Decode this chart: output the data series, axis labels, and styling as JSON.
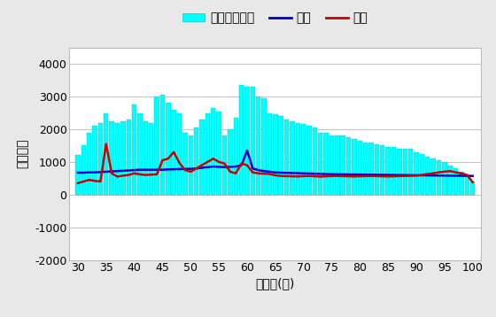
{
  "ages": [
    30,
    31,
    32,
    33,
    34,
    35,
    36,
    37,
    38,
    39,
    40,
    41,
    42,
    43,
    44,
    45,
    46,
    47,
    48,
    49,
    50,
    51,
    52,
    53,
    54,
    55,
    56,
    57,
    58,
    59,
    60,
    61,
    62,
    63,
    64,
    65,
    66,
    67,
    68,
    69,
    70,
    71,
    72,
    73,
    74,
    75,
    76,
    77,
    78,
    79,
    80,
    81,
    82,
    83,
    84,
    85,
    86,
    87,
    88,
    89,
    90,
    91,
    92,
    93,
    94,
    95,
    96,
    97,
    98,
    99,
    100
  ],
  "bar_values": [
    1200,
    1500,
    1900,
    2100,
    2200,
    2500,
    2250,
    2200,
    2250,
    2300,
    2750,
    2500,
    2250,
    2200,
    3000,
    3050,
    2800,
    2600,
    2500,
    1900,
    1800,
    2050,
    2300,
    2500,
    2650,
    2550,
    1800,
    2000,
    2350,
    3350,
    3300,
    3300,
    3000,
    2950,
    2500,
    2450,
    2400,
    2300,
    2250,
    2200,
    2150,
    2100,
    2050,
    1900,
    1900,
    1800,
    1800,
    1800,
    1750,
    1700,
    1650,
    1600,
    1600,
    1550,
    1500,
    1450,
    1450,
    1400,
    1400,
    1400,
    1300,
    1250,
    1150,
    1100,
    1050,
    1000,
    900,
    800,
    700,
    600,
    400
  ],
  "income": [
    670,
    670,
    680,
    680,
    690,
    700,
    710,
    720,
    730,
    740,
    750,
    760,
    760,
    760,
    760,
    760,
    770,
    775,
    780,
    785,
    790,
    800,
    820,
    840,
    860,
    850,
    840,
    850,
    860,
    900,
    1350,
    800,
    750,
    720,
    700,
    680,
    670,
    665,
    660,
    655,
    650,
    645,
    640,
    635,
    630,
    625,
    620,
    618,
    616,
    614,
    612,
    610,
    608,
    606,
    604,
    602,
    600,
    598,
    596,
    594,
    592,
    590,
    588,
    586,
    584,
    582,
    580,
    578,
    576,
    574,
    570
  ],
  "expenditure": [
    350,
    400,
    450,
    420,
    400,
    1550,
    650,
    550,
    580,
    600,
    650,
    620,
    600,
    610,
    620,
    1050,
    1100,
    1300,
    970,
    750,
    700,
    800,
    900,
    1000,
    1100,
    1000,
    950,
    700,
    650,
    950,
    900,
    680,
    650,
    640,
    630,
    590,
    570,
    565,
    560,
    555,
    565,
    570,
    560,
    550,
    560,
    565,
    570,
    565,
    560,
    555,
    560,
    565,
    570,
    565,
    560,
    555,
    560,
    565,
    570,
    575,
    580,
    600,
    630,
    650,
    680,
    700,
    720,
    680,
    650,
    600,
    380
  ],
  "bar_color": "#00FFFF",
  "bar_edge_color": "#00CCCC",
  "income_color": "#0000CC",
  "expenditure_color": "#CC0000",
  "ylim": [
    -2000,
    4500
  ],
  "yticks": [
    -2000,
    -1000,
    0,
    1000,
    2000,
    3000,
    4000
  ],
  "xticks": [
    30,
    35,
    40,
    45,
    50,
    55,
    60,
    65,
    70,
    75,
    80,
    85,
    90,
    95,
    100
  ],
  "xlabel": "夫年齢(歳)",
  "ylabel": "（万円）",
  "legend_bar": "金融資産残高",
  "legend_income": "収入",
  "legend_expenditure": "支出",
  "bg_color": "#E8E8E8",
  "plot_bg_color": "#FFFFFF",
  "grid_color": "#AAAAAA"
}
